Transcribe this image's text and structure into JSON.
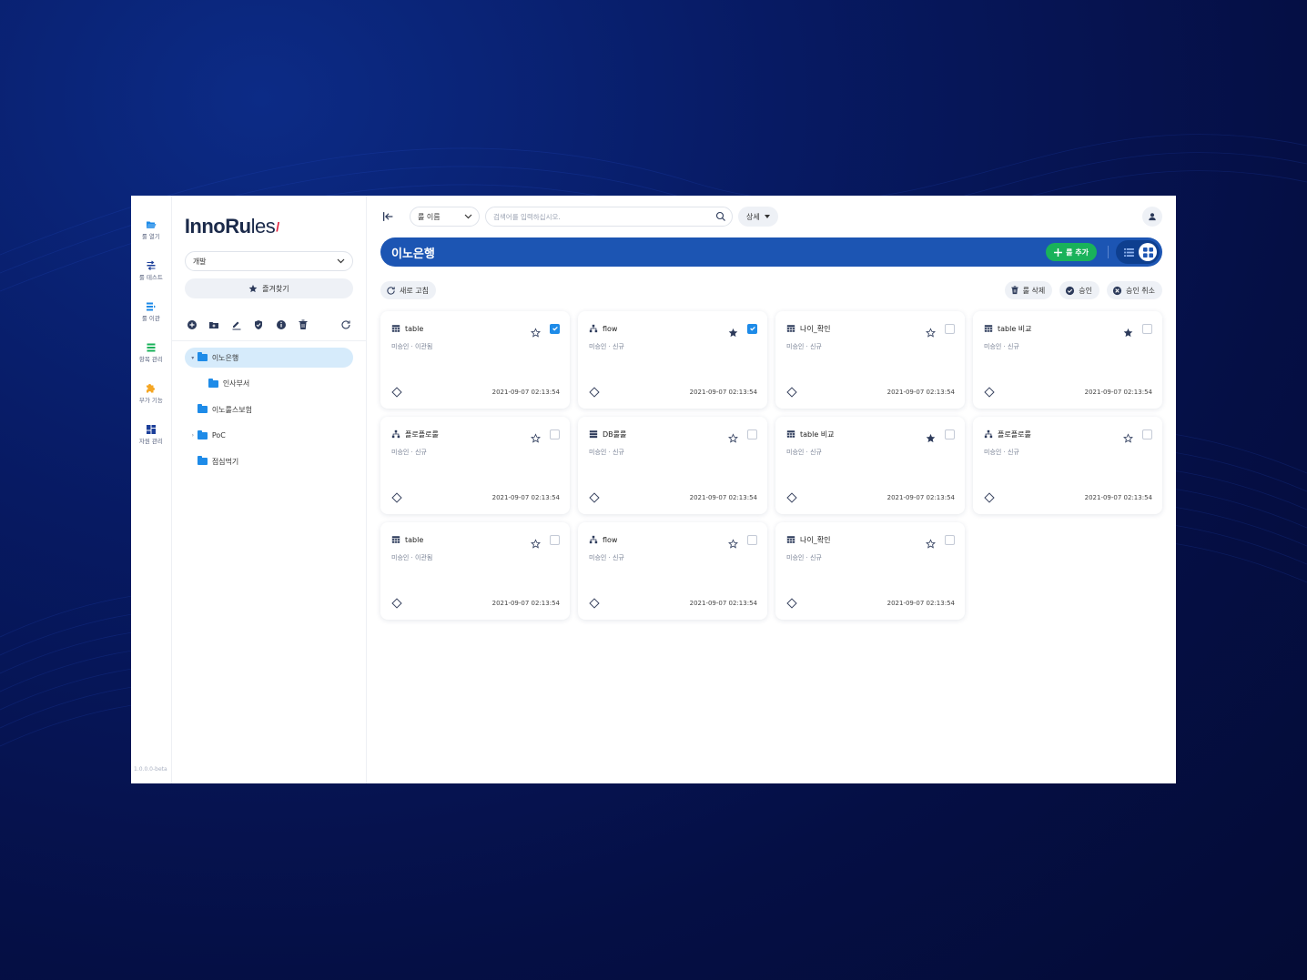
{
  "rail": {
    "items": [
      {
        "label": "룰 열기",
        "icon": "folder-open-icon",
        "color": "#1e8be8"
      },
      {
        "label": "룰 테스트",
        "icon": "test-icon",
        "color": "#1c3f9a"
      },
      {
        "label": "룰 이관",
        "icon": "transfer-icon",
        "color": "#1e8be8"
      },
      {
        "label": "항목 관리",
        "icon": "list-icon",
        "color": "#19b25a"
      },
      {
        "label": "부가 기능",
        "icon": "puzzle-icon",
        "color": "#f5a623"
      },
      {
        "label": "자원 관리",
        "icon": "dashboard-icon",
        "color": "#1c3f9a"
      }
    ],
    "version": "1.0.0.0-beta"
  },
  "tree": {
    "logo_main": "InnoRu",
    "logo_light": "les",
    "env_value": "개발",
    "favorites_label": "즐겨찾기",
    "tools": [
      "add-circle-icon",
      "add-folder-icon",
      "edit-icon",
      "shield-check-icon",
      "info-icon",
      "trash-icon",
      "refresh-icon"
    ],
    "nodes": [
      {
        "label": "이노은행",
        "level": 0,
        "caret": "▾",
        "selected": true
      },
      {
        "label": "인사부서",
        "level": 1,
        "caret": "",
        "selected": false
      },
      {
        "label": "이노룰스보험",
        "level": 0,
        "caret": "",
        "selected": false
      },
      {
        "label": "PoC",
        "level": 0,
        "caret": "›",
        "selected": false
      },
      {
        "label": "점심먹기",
        "level": 0,
        "caret": "",
        "selected": false
      }
    ]
  },
  "topbar": {
    "field_select": "룰 이름",
    "search_placeholder": "검색어를 입력하십시오.",
    "detail_label": "상세"
  },
  "titlebar": {
    "title": "이노은행",
    "add_label": "룰 추가"
  },
  "actions": {
    "refresh_label": "새로 고침",
    "delete_label": "룰 삭제",
    "approve_label": "승인",
    "cancel_label": "승인 취소"
  },
  "colors": {
    "primary": "#1c55b3",
    "accent": "#1e8be8",
    "green": "#19b25a",
    "star": "#2c3a5a"
  },
  "cards": [
    {
      "type": "table",
      "name": "table",
      "status": "미승인 · 이관됨",
      "date": "2021-09-07 02:13:54",
      "starred": false,
      "checked": true
    },
    {
      "type": "flow",
      "name": "flow",
      "status": "미승인 · 신규",
      "date": "2021-09-07 02:13:54",
      "starred": true,
      "checked": true
    },
    {
      "type": "table",
      "name": "나이_확인",
      "status": "미승인 · 신규",
      "date": "2021-09-07 02:13:54",
      "starred": false,
      "checked": false
    },
    {
      "type": "table",
      "name": "table 비교",
      "status": "미승인 · 신규",
      "date": "2021-09-07 02:13:54",
      "starred": true,
      "checked": false
    },
    {
      "type": "flow",
      "name": "플로플로룰",
      "status": "미승인 · 신규",
      "date": "2021-09-07 02:13:54",
      "starred": false,
      "checked": false
    },
    {
      "type": "db",
      "name": "DB룰룰",
      "status": "미승인 · 신규",
      "date": "2021-09-07 02:13:54",
      "starred": false,
      "checked": false
    },
    {
      "type": "table",
      "name": "table 비교",
      "status": "미승인 · 신규",
      "date": "2021-09-07 02:13:54",
      "starred": true,
      "checked": false
    },
    {
      "type": "flow",
      "name": "플로플로룰",
      "status": "미승인 · 신규",
      "date": "2021-09-07 02:13:54",
      "starred": false,
      "checked": false
    },
    {
      "type": "table",
      "name": "table",
      "status": "미승인 · 이관됨",
      "date": "2021-09-07 02:13:54",
      "starred": false,
      "checked": false
    },
    {
      "type": "flow",
      "name": "flow",
      "status": "미승인 · 신규",
      "date": "2021-09-07 02:13:54",
      "starred": false,
      "checked": false
    },
    {
      "type": "table",
      "name": "나이_확인",
      "status": "미승인 · 신규",
      "date": "2021-09-07 02:13:54",
      "starred": false,
      "checked": false
    }
  ]
}
